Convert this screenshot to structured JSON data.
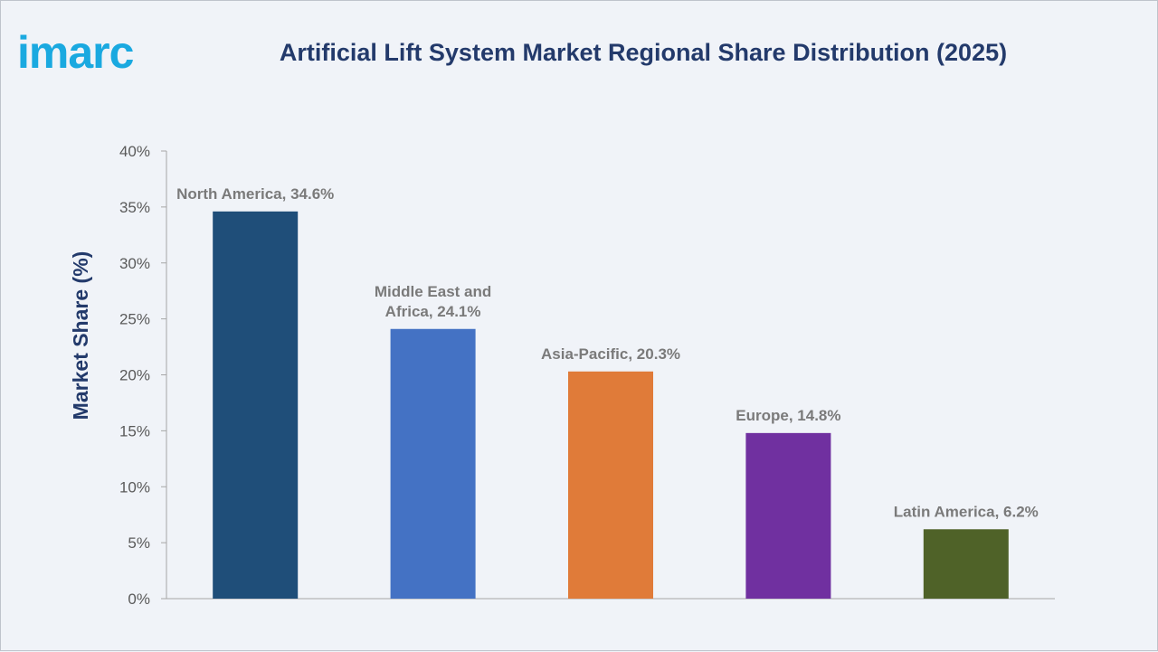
{
  "brand": {
    "logo_text": "imarc",
    "logo_color": "#1aa9e0"
  },
  "chart_data": {
    "type": "bar",
    "title": "Artificial Lift System Market Regional Share Distribution (2025)",
    "ylabel": "Market Share (%)",
    "xlabel": "",
    "ylim": [
      0,
      40
    ],
    "yticks": [
      0,
      5,
      10,
      15,
      20,
      25,
      30,
      35,
      40
    ],
    "ytick_labels": [
      "0%",
      "5%",
      "10%",
      "15%",
      "20%",
      "25%",
      "30%",
      "35%",
      "40%"
    ],
    "grid": false,
    "categories": [
      "North America",
      "Middle East and Africa",
      "Asia-Pacific",
      "Europe",
      "Latin America"
    ],
    "values": [
      34.6,
      24.1,
      20.3,
      14.8,
      6.2
    ],
    "data_labels": [
      [
        "North America, 34.6%"
      ],
      [
        "Middle East and",
        "Africa, 24.1%"
      ],
      [
        "Asia-Pacific, 20.3%"
      ],
      [
        "Europe, 14.8%"
      ],
      [
        "Latin America, 6.2%"
      ]
    ],
    "colors": [
      "#1f4e79",
      "#4472c4",
      "#e07b39",
      "#7030a0",
      "#4f6228"
    ]
  }
}
